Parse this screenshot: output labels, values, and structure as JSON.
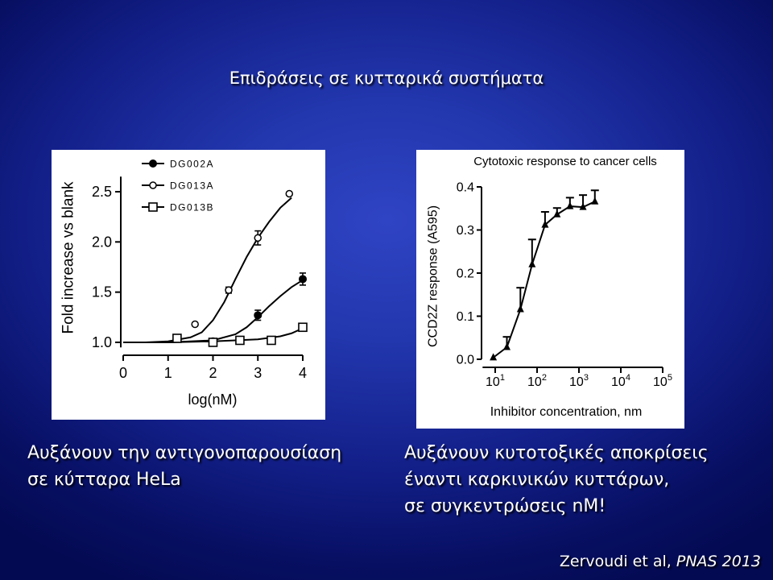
{
  "slide": {
    "title": "Επιδράσεις σε κυτταρικά συστήματα",
    "left_caption": [
      "Αυξάνουν την αντιγονοπαρουσίαση",
      "σε κύτταρα HeLa"
    ],
    "right_caption": [
      "Αυξάνουν κυτοτοξικές αποκρίσεις",
      "έναντι καρκινικών κυττάρων,",
      "σε συγκεντρώσεις nM!"
    ],
    "citation": {
      "authors": "Zervoudi et al,",
      "journal": "PNAS 2013"
    }
  },
  "colors": {
    "background_center": "#2f44c4",
    "background_edge": "#040a52",
    "text": "#ffffff",
    "panel": "#ffffff",
    "chart_ink": "#000000"
  },
  "chart_data": [
    {
      "type": "scatter",
      "title": "",
      "xlabel": "log(nM)",
      "ylabel": "Fold increase vs blank",
      "xlim": [
        0,
        4
      ],
      "ylim": [
        0.95,
        2.65
      ],
      "x_ticks": [
        0,
        1,
        2,
        3,
        4
      ],
      "x_tick_labels": [
        "0",
        "1",
        "2",
        "3",
        "4"
      ],
      "y_ticks": [
        1.0,
        1.5,
        2.0,
        2.5
      ],
      "y_tick_labels": [
        "1.0",
        "1.5",
        "2.0",
        "2.5"
      ],
      "grid": false,
      "legend": "top-left",
      "series": [
        {
          "name": "DG002A",
          "marker": "filled-circle",
          "x": [
            2.0,
            3.0,
            4.0
          ],
          "y": [
            1.01,
            1.27,
            1.63
          ],
          "err": [
            0.01,
            0.05,
            0.06
          ],
          "fit": [
            [
              0,
              1.0
            ],
            [
              1,
              1.0
            ],
            [
              1.5,
              1.01
            ],
            [
              2,
              1.02
            ],
            [
              2.5,
              1.08
            ],
            [
              2.75,
              1.15
            ],
            [
              3,
              1.25
            ],
            [
              3.25,
              1.36
            ],
            [
              3.5,
              1.46
            ],
            [
              3.75,
              1.55
            ],
            [
              4,
              1.62
            ]
          ]
        },
        {
          "name": "DG013A",
          "marker": "open-circle",
          "x": [
            1.6,
            2.35,
            3.0,
            3.7
          ],
          "y": [
            1.18,
            1.52,
            2.04,
            2.48
          ],
          "err": [
            0,
            0.03,
            0.07,
            0
          ],
          "fit": [
            [
              0,
              1.0
            ],
            [
              0.5,
              1.0
            ],
            [
              1.0,
              1.01
            ],
            [
              1.5,
              1.05
            ],
            [
              1.75,
              1.1
            ],
            [
              2.0,
              1.22
            ],
            [
              2.25,
              1.4
            ],
            [
              2.5,
              1.63
            ],
            [
              2.75,
              1.85
            ],
            [
              3.0,
              2.04
            ],
            [
              3.25,
              2.2
            ],
            [
              3.5,
              2.34
            ],
            [
              3.75,
              2.44
            ]
          ]
        },
        {
          "name": "DG013B",
          "marker": "open-square",
          "x": [
            1.2,
            2.0,
            2.6,
            3.3,
            4.0
          ],
          "y": [
            1.04,
            1.0,
            1.02,
            1.02,
            1.15
          ],
          "err": [
            0,
            0,
            0,
            0,
            0
          ],
          "fit": [
            [
              0,
              1.0
            ],
            [
              1,
              1.0
            ],
            [
              2,
              1.01
            ],
            [
              2.5,
              1.02
            ],
            [
              3,
              1.03
            ],
            [
              3.5,
              1.06
            ],
            [
              3.75,
              1.09
            ],
            [
              4,
              1.14
            ]
          ]
        }
      ]
    },
    {
      "type": "line",
      "title": "Cytotoxic response to cancer cells",
      "xlabel": "Inhibitor concentration, nm",
      "ylabel": "CCD2Z response (A595)",
      "x_scale": "log",
      "xlim": [
        5,
        100000
      ],
      "ylim": [
        0,
        0.4
      ],
      "x_ticks": [
        10,
        100,
        1000,
        10000,
        100000
      ],
      "x_tick_labels": [
        {
          "base": "10",
          "exp": "1"
        },
        {
          "base": "10",
          "exp": "2"
        },
        {
          "base": "10",
          "exp": "3"
        },
        {
          "base": "10",
          "exp": "4"
        },
        {
          "base": "10",
          "exp": "5"
        }
      ],
      "y_ticks": [
        0,
        0.1,
        0.2,
        0.3,
        0.4
      ],
      "y_tick_labels": [
        "0.0",
        "0.1",
        "0.2",
        "0.3",
        "0.4"
      ],
      "grid": false,
      "series": [
        {
          "marker": "filled-triangle",
          "x": [
            9,
            19,
            40,
            76,
            155,
            300,
            610,
            1250,
            2400
          ],
          "y": [
            0.004,
            0.028,
            0.116,
            0.22,
            0.312,
            0.336,
            0.355,
            0.353,
            0.366
          ],
          "err_upper": [
            0,
            0.024,
            0.05,
            0.058,
            0.03,
            0.015,
            0.02,
            0.028,
            0.026
          ]
        }
      ]
    }
  ]
}
